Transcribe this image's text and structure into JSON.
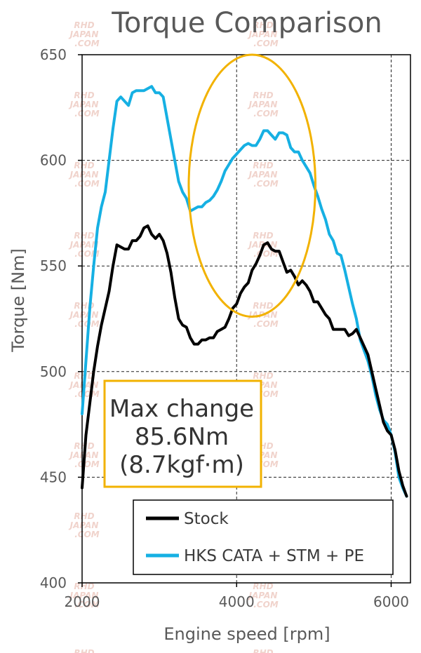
{
  "chart_data": {
    "type": "line",
    "title": "Torque Comparison",
    "xlabel": "Engine speed [rpm]",
    "ylabel": "Torque [Nm]",
    "xlim": [
      2000,
      6250
    ],
    "ylim": [
      400,
      650
    ],
    "xticks": [
      2000,
      4000,
      6000
    ],
    "yticks": [
      400,
      450,
      500,
      550,
      600,
      650
    ],
    "grid": "dashed",
    "legend_position": "bottom-right",
    "series": [
      {
        "name": "Stock",
        "color": "#000000",
        "points": [
          [
            2000,
            445
          ],
          [
            2050,
            470
          ],
          [
            2100,
            485
          ],
          [
            2150,
            500
          ],
          [
            2200,
            512
          ],
          [
            2250,
            522
          ],
          [
            2300,
            530
          ],
          [
            2350,
            538
          ],
          [
            2400,
            550
          ],
          [
            2450,
            560
          ],
          [
            2500,
            559
          ],
          [
            2550,
            558
          ],
          [
            2600,
            558
          ],
          [
            2650,
            562
          ],
          [
            2700,
            562
          ],
          [
            2750,
            564
          ],
          [
            2800,
            568
          ],
          [
            2850,
            569
          ],
          [
            2900,
            565
          ],
          [
            2950,
            563
          ],
          [
            3000,
            565
          ],
          [
            3050,
            562
          ],
          [
            3100,
            556
          ],
          [
            3150,
            547
          ],
          [
            3200,
            535
          ],
          [
            3250,
            525
          ],
          [
            3300,
            522
          ],
          [
            3350,
            521
          ],
          [
            3400,
            516
          ],
          [
            3450,
            513
          ],
          [
            3500,
            513
          ],
          [
            3550,
            515
          ],
          [
            3600,
            515
          ],
          [
            3650,
            516
          ],
          [
            3700,
            516
          ],
          [
            3750,
            519
          ],
          [
            3800,
            520
          ],
          [
            3850,
            521
          ],
          [
            3900,
            525
          ],
          [
            3950,
            530
          ],
          [
            4000,
            532
          ],
          [
            4050,
            537
          ],
          [
            4100,
            540
          ],
          [
            4150,
            542
          ],
          [
            4200,
            548
          ],
          [
            4250,
            551
          ],
          [
            4300,
            555
          ],
          [
            4350,
            560
          ],
          [
            4400,
            561
          ],
          [
            4450,
            558
          ],
          [
            4500,
            557
          ],
          [
            4550,
            557
          ],
          [
            4600,
            552
          ],
          [
            4650,
            547
          ],
          [
            4700,
            548
          ],
          [
            4750,
            545
          ],
          [
            4800,
            541
          ],
          [
            4850,
            543
          ],
          [
            4900,
            541
          ],
          [
            4950,
            538
          ],
          [
            5000,
            533
          ],
          [
            5050,
            533
          ],
          [
            5100,
            530
          ],
          [
            5150,
            527
          ],
          [
            5200,
            525
          ],
          [
            5250,
            520
          ],
          [
            5300,
            520
          ],
          [
            5350,
            520
          ],
          [
            5400,
            520
          ],
          [
            5450,
            517
          ],
          [
            5500,
            518
          ],
          [
            5550,
            520
          ],
          [
            5600,
            516
          ],
          [
            5650,
            512
          ],
          [
            5700,
            508
          ],
          [
            5750,
            500
          ],
          [
            5800,
            492
          ],
          [
            5850,
            484
          ],
          [
            5900,
            476
          ],
          [
            5950,
            472
          ],
          [
            6000,
            470
          ],
          [
            6050,
            463
          ],
          [
            6100,
            453
          ],
          [
            6150,
            446
          ],
          [
            6200,
            441
          ]
        ]
      },
      {
        "name": "HKS CATA + STM + PE",
        "color": "#16b0e3",
        "points": [
          [
            2000,
            480
          ],
          [
            2050,
            505
          ],
          [
            2100,
            530
          ],
          [
            2150,
            550
          ],
          [
            2200,
            568
          ],
          [
            2250,
            578
          ],
          [
            2300,
            585
          ],
          [
            2350,
            600
          ],
          [
            2400,
            615
          ],
          [
            2450,
            628
          ],
          [
            2500,
            630
          ],
          [
            2550,
            628
          ],
          [
            2600,
            626
          ],
          [
            2650,
            632
          ],
          [
            2700,
            633
          ],
          [
            2750,
            633
          ],
          [
            2800,
            633
          ],
          [
            2850,
            634
          ],
          [
            2900,
            635
          ],
          [
            2950,
            632
          ],
          [
            3000,
            632
          ],
          [
            3050,
            630
          ],
          [
            3100,
            620
          ],
          [
            3150,
            610
          ],
          [
            3200,
            600
          ],
          [
            3250,
            590
          ],
          [
            3300,
            585
          ],
          [
            3350,
            582
          ],
          [
            3400,
            576
          ],
          [
            3450,
            577
          ],
          [
            3500,
            578
          ],
          [
            3550,
            578
          ],
          [
            3600,
            580
          ],
          [
            3650,
            581
          ],
          [
            3700,
            583
          ],
          [
            3750,
            586
          ],
          [
            3800,
            590
          ],
          [
            3850,
            595
          ],
          [
            3900,
            598
          ],
          [
            3950,
            601
          ],
          [
            4000,
            603
          ],
          [
            4050,
            605
          ],
          [
            4100,
            607
          ],
          [
            4150,
            608
          ],
          [
            4200,
            607
          ],
          [
            4250,
            607
          ],
          [
            4300,
            610
          ],
          [
            4350,
            614
          ],
          [
            4400,
            614
          ],
          [
            4450,
            612
          ],
          [
            4500,
            610
          ],
          [
            4550,
            613
          ],
          [
            4600,
            613
          ],
          [
            4650,
            612
          ],
          [
            4700,
            606
          ],
          [
            4750,
            604
          ],
          [
            4800,
            604
          ],
          [
            4850,
            600
          ],
          [
            4900,
            597
          ],
          [
            4950,
            594
          ],
          [
            5000,
            588
          ],
          [
            5050,
            583
          ],
          [
            5100,
            577
          ],
          [
            5150,
            572
          ],
          [
            5200,
            565
          ],
          [
            5250,
            562
          ],
          [
            5300,
            556
          ],
          [
            5350,
            555
          ],
          [
            5400,
            548
          ],
          [
            5450,
            540
          ],
          [
            5500,
            532
          ],
          [
            5550,
            525
          ],
          [
            5600,
            515
          ],
          [
            5650,
            510
          ],
          [
            5700,
            505
          ],
          [
            5750,
            498
          ],
          [
            5800,
            489
          ],
          [
            5850,
            482
          ],
          [
            5900,
            477
          ],
          [
            5950,
            475
          ],
          [
            6000,
            470
          ],
          [
            6050,
            462
          ],
          [
            6100,
            450
          ],
          [
            6150,
            445
          ],
          [
            6200,
            441
          ]
        ]
      }
    ],
    "annotation": {
      "lines": [
        "Max change",
        "85.6Nm",
        "(8.7kgf·m)"
      ],
      "border_color": "#f2b200"
    },
    "highlight_ellipse": {
      "center": [
        4200,
        588
      ],
      "radius_x": 1640,
      "radius_y": 62,
      "color": "#f2b200"
    },
    "watermark": [
      "RHD",
      "JAPAN",
      ".COM"
    ]
  }
}
